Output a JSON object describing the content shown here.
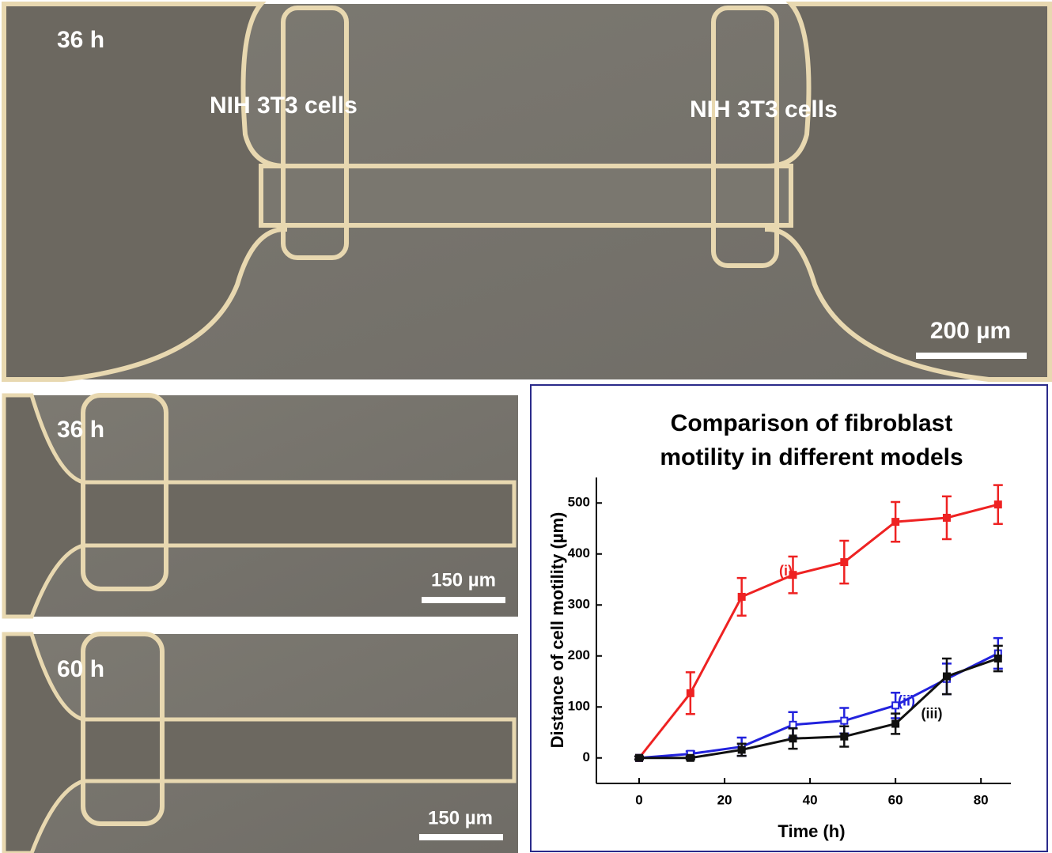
{
  "panels": {
    "top": {
      "time": "36 h",
      "left_label": "NIH 3T3 cells",
      "right_label": "NIH 3T3 cells",
      "scale_bar": "200 µm"
    },
    "middle": {
      "time": "36 h",
      "scale_bar": "150 µm"
    },
    "bottom": {
      "time": "60 h",
      "scale_bar": "150 µm"
    }
  },
  "chart_data": {
    "type": "line",
    "title": [
      "Comparison of fibroblast",
      "motility in different models"
    ],
    "x_label": "Time (h)",
    "y_label": "Distance of cell motility (µm)",
    "x": [
      0,
      12,
      24,
      36,
      48,
      60,
      72,
      84
    ],
    "series": [
      {
        "name": "(i)",
        "color": "#ee2222",
        "marker": "filled",
        "values": [
          0,
          127,
          316,
          359,
          384,
          463,
          471,
          497
        ],
        "errors": [
          3,
          41,
          37,
          36,
          42,
          39,
          42,
          38
        ]
      },
      {
        "name": "(ii)",
        "color": "#2222dd",
        "marker": "open",
        "values": [
          0,
          8,
          22,
          65,
          73,
          103,
          155,
          205
        ],
        "errors": [
          3,
          5,
          18,
          25,
          25,
          25,
          30,
          30
        ]
      },
      {
        "name": "(iii)",
        "color": "#111111",
        "marker": "filled",
        "values": [
          0,
          0,
          16,
          38,
          42,
          67,
          160,
          195
        ],
        "errors": [
          3,
          3,
          12,
          20,
          20,
          20,
          35,
          25
        ]
      }
    ],
    "xlim": [
      -10,
      87
    ],
    "ylim": [
      -50,
      550
    ],
    "xticks": [
      0,
      20,
      40,
      60,
      80
    ],
    "yticks": [
      0,
      100,
      200,
      300,
      400,
      500
    ]
  }
}
